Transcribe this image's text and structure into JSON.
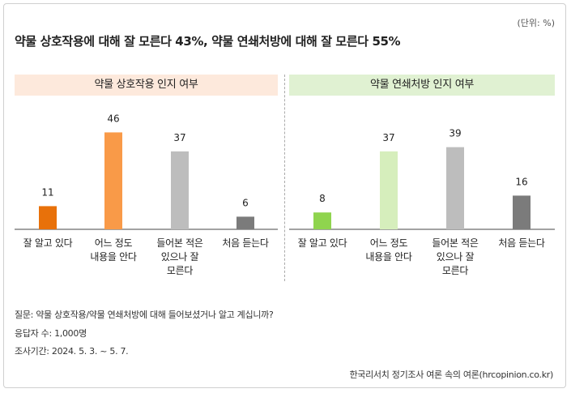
{
  "unit_note": "(단위: %)",
  "headline": "약물 상호작용에 대해 잘 모른다 43%, 약물 연쇄처방에 대해 잘 모른다 55%",
  "chart_data": [
    {
      "type": "bar",
      "title": "약물 상호작용 인지 여부",
      "header_color": "#fde9dc",
      "categories": [
        "잘 알고 있다",
        "어느 정도\n내용을 안다",
        "들어본 적은\n있으나 잘\n모른다",
        "처음 듣는다"
      ],
      "values": [
        11,
        46,
        37,
        6
      ],
      "colors": [
        "#e8710a",
        "#f99a48",
        "#bdbdbd",
        "#7b7b7b"
      ],
      "ylim": [
        0,
        50
      ]
    },
    {
      "type": "bar",
      "title": "약물 연쇄처방 인지 여부",
      "header_color": "#e0f1d2",
      "categories": [
        "잘 알고 있다",
        "어느 정도\n내용을 안다",
        "들어본 적은\n있으나 잘\n모른다",
        "처음 듣는다"
      ],
      "values": [
        8,
        37,
        39,
        16
      ],
      "colors": [
        "#8fd44e",
        "#d6eebc",
        "#bdbdbd",
        "#7b7b7b"
      ],
      "ylim": [
        0,
        50
      ]
    }
  ],
  "notes": {
    "question": "질문: 약물 상호작용/약물 연쇄처방에 대해 들어보셨거나 알고 계십니까?",
    "respondents": "응답자 수: 1,000명",
    "period": "조사기간: 2024. 5. 3. ~ 5. 7."
  },
  "source": "한국리서치 정기조사 여론 속의 여론(hrcopinion.co.kr)"
}
